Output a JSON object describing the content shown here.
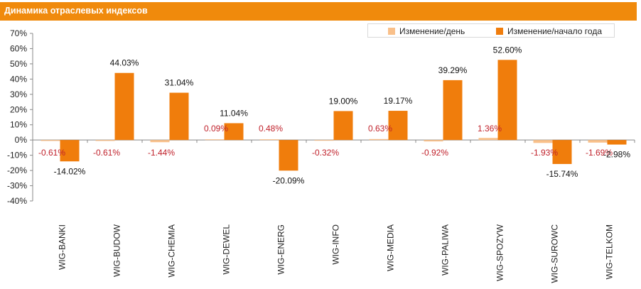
{
  "chart_data": {
    "type": "bar",
    "title": "Динамика отраслевых индексов",
    "categories": [
      "WIG-BANKI",
      "WIG-BUDOW",
      "WIG-CHEMIA",
      "WIG-DEWEL",
      "WIG-ENERG",
      "WIG-INFO",
      "WIG-MEDIA",
      "WIG-PALIWA",
      "WIG-SPOZYW",
      "WIG-SUROWC",
      "WIG-TELKOM"
    ],
    "series": [
      {
        "name": "Изменение/день",
        "color": "#f9c08a",
        "values": [
          -0.61,
          -0.61,
          -1.44,
          0.09,
          0.48,
          -0.32,
          0.63,
          -0.92,
          1.36,
          -1.93,
          -1.69
        ],
        "labels": [
          "-0.61%",
          "-0.61%",
          "-1.44%",
          "0.09%",
          "0.48%",
          "-0.32%",
          "0.63%",
          "-0.92%",
          "1.36%",
          "-1.93%",
          "-1.69%"
        ]
      },
      {
        "name": "Изменение/начало года",
        "color": "#f07d0c",
        "values": [
          -14.02,
          44.03,
          31.04,
          11.04,
          -20.09,
          19.0,
          19.17,
          39.29,
          52.6,
          -15.74,
          -2.98
        ],
        "labels": [
          "-14.02%",
          "44.03%",
          "31.04%",
          "11.04%",
          "-20.09%",
          "19.00%",
          "19.17%",
          "39.29%",
          "52.60%",
          "-15.74%",
          "-2.98%"
        ]
      }
    ],
    "ylim": [
      -40,
      70
    ],
    "yticks": [
      "70%",
      "60%",
      "50%",
      "40%",
      "30%",
      "20%",
      "10%",
      "0%",
      "-10%",
      "-20%",
      "-30%",
      "-40%"
    ],
    "ytick_values": [
      70,
      60,
      50,
      40,
      30,
      20,
      10,
      0,
      -10,
      -20,
      -30,
      -40
    ],
    "legend_position": "top-right",
    "grid": false,
    "colors": {
      "title_bar": "#f08a0c",
      "day_label": "#c0202a",
      "year_label": "#111111"
    }
  }
}
